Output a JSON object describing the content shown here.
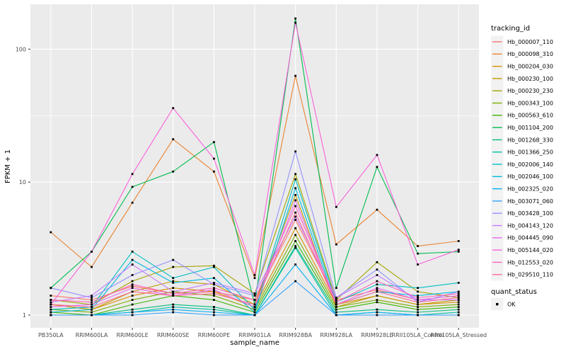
{
  "figure": {
    "background": "#FFFFFF",
    "panel_background": "#EBEBEB",
    "grid_color": "#FFFFFF",
    "axis_text_color": "#4D4D4D",
    "title_text_color": "#000000",
    "tick_mark_color": "#333333",
    "legend_key_fill": "#F2F2F2",
    "point_color": "#000000"
  },
  "chart_data": {
    "type": "line",
    "title": "",
    "xlabel": "sample_name",
    "ylabel": "FPKM + 1",
    "y_scale": "log10",
    "y_ticks": [
      "1",
      "10",
      "100"
    ],
    "y_tick_values": [
      1,
      10,
      100
    ],
    "y_minor_breaks": [
      3.162,
      31.623
    ],
    "ylim": [
      0.8,
      215
    ],
    "grid": true,
    "legend_position": "right",
    "categories": [
      "PB350LA",
      "RRIM600LA",
      "RRIM600LE",
      "RRIM600SE",
      "RRIM600PE",
      "RRIM901LA",
      "RRIM928BA",
      "RRIM928LA",
      "RRIM928LE",
      "RRII105LA_Control",
      "RRII105LA_Stressed"
    ],
    "series": [
      {
        "name": "Hb_000007_110",
        "color": "#F8766D",
        "values": [
          1.4,
          1.3,
          1.65,
          1.45,
          1.5,
          1.3,
          5.2,
          1.3,
          1.55,
          1.3,
          1.4
        ]
      },
      {
        "name": "Hb_000098_310",
        "color": "#EA8331",
        "values": [
          4.2,
          2.3,
          7.0,
          21.0,
          12.0,
          1.9,
          63.0,
          3.4,
          6.2,
          3.3,
          3.6
        ]
      },
      {
        "name": "Hb_000204_030",
        "color": "#D89000",
        "values": [
          1.2,
          1.1,
          1.4,
          1.6,
          1.5,
          1.15,
          4.5,
          1.2,
          1.4,
          1.2,
          1.25
        ]
      },
      {
        "name": "Hb_000230_100",
        "color": "#C09B00",
        "values": [
          1.2,
          1.1,
          1.5,
          1.8,
          1.7,
          1.2,
          8.0,
          1.15,
          1.4,
          1.2,
          1.3
        ]
      },
      {
        "name": "Hb_000230_230",
        "color": "#A3A500",
        "values": [
          1.3,
          1.2,
          1.8,
          2.3,
          2.35,
          1.45,
          11.5,
          1.3,
          2.5,
          1.5,
          1.35
        ]
      },
      {
        "name": "Hb_000343_100",
        "color": "#7CAE00",
        "values": [
          1.1,
          1.05,
          1.3,
          1.5,
          1.4,
          1.1,
          4.0,
          1.15,
          1.3,
          1.15,
          1.2
        ]
      },
      {
        "name": "Hb_000563_610",
        "color": "#39B600",
        "values": [
          1.05,
          1.0,
          1.2,
          1.4,
          1.3,
          1.05,
          3.6,
          1.1,
          1.25,
          1.1,
          1.15
        ]
      },
      {
        "name": "Hb_001104_200",
        "color": "#00BB4E",
        "values": [
          1.6,
          3.0,
          9.2,
          12.0,
          20.0,
          1.2,
          170.0,
          1.6,
          13.0,
          2.9,
          3.0
        ]
      },
      {
        "name": "Hb_001268_330",
        "color": "#00BF7D",
        "values": [
          1.0,
          1.0,
          1.1,
          1.2,
          1.15,
          1.0,
          3.3,
          1.05,
          1.1,
          1.05,
          1.1
        ]
      },
      {
        "name": "Hb_001366_250",
        "color": "#00C1A3",
        "values": [
          1.0,
          1.0,
          1.05,
          1.15,
          1.1,
          1.0,
          3.2,
          1.0,
          1.05,
          1.0,
          1.05
        ]
      },
      {
        "name": "Hb_002006_140",
        "color": "#00BFC4",
        "values": [
          1.1,
          1.15,
          3.0,
          1.9,
          2.3,
          1.1,
          10.5,
          1.25,
          1.7,
          1.6,
          1.75
        ]
      },
      {
        "name": "Hb_002046_100",
        "color": "#00BAE0",
        "values": [
          1.05,
          1.1,
          2.6,
          1.75,
          1.9,
          1.05,
          9.0,
          1.2,
          1.5,
          1.4,
          1.5
        ]
      },
      {
        "name": "Hb_002325_020",
        "color": "#00B0F6",
        "values": [
          1.0,
          1.0,
          1.05,
          1.1,
          1.05,
          1.0,
          2.4,
          1.0,
          1.05,
          1.0,
          1.0
        ]
      },
      {
        "name": "Hb_003071_060",
        "color": "#35A2FF",
        "values": [
          1.0,
          1.0,
          1.0,
          1.05,
          1.0,
          1.0,
          1.8,
          1.0,
          1.0,
          1.0,
          1.0
        ]
      },
      {
        "name": "Hb_003428_100",
        "color": "#9590FF",
        "values": [
          1.6,
          1.35,
          2.0,
          2.6,
          1.7,
          1.4,
          17.0,
          1.35,
          2.2,
          1.25,
          1.5
        ]
      },
      {
        "name": "Hb_004143_120",
        "color": "#C77CFF",
        "values": [
          1.25,
          1.4,
          2.4,
          1.5,
          1.75,
          1.45,
          5.5,
          1.35,
          2.0,
          1.3,
          1.3
        ]
      },
      {
        "name": "Hb_004445_090",
        "color": "#E76BF3",
        "values": [
          1.15,
          1.2,
          1.6,
          1.4,
          1.55,
          1.15,
          7.3,
          1.2,
          1.6,
          1.3,
          1.4
        ]
      },
      {
        "name": "Hb_005144_020",
        "color": "#FA62DB",
        "values": [
          1.2,
          3.0,
          11.5,
          36.0,
          15.0,
          2.0,
          158.0,
          6.5,
          16.0,
          2.4,
          3.1
        ]
      },
      {
        "name": "Hb_012553_020",
        "color": "#FF62BC",
        "values": [
          1.3,
          1.25,
          1.7,
          1.45,
          1.6,
          1.3,
          6.6,
          1.25,
          1.8,
          1.35,
          1.45
        ]
      },
      {
        "name": "Hb_029510_110",
        "color": "#FF6A98",
        "values": [
          1.2,
          1.15,
          1.5,
          1.4,
          1.45,
          1.2,
          5.9,
          1.2,
          1.5,
          1.25,
          1.35
        ]
      }
    ],
    "legends": [
      {
        "title": "tracking_id"
      },
      {
        "title": "quant_status",
        "items": [
          {
            "label": "OK"
          }
        ]
      }
    ]
  }
}
